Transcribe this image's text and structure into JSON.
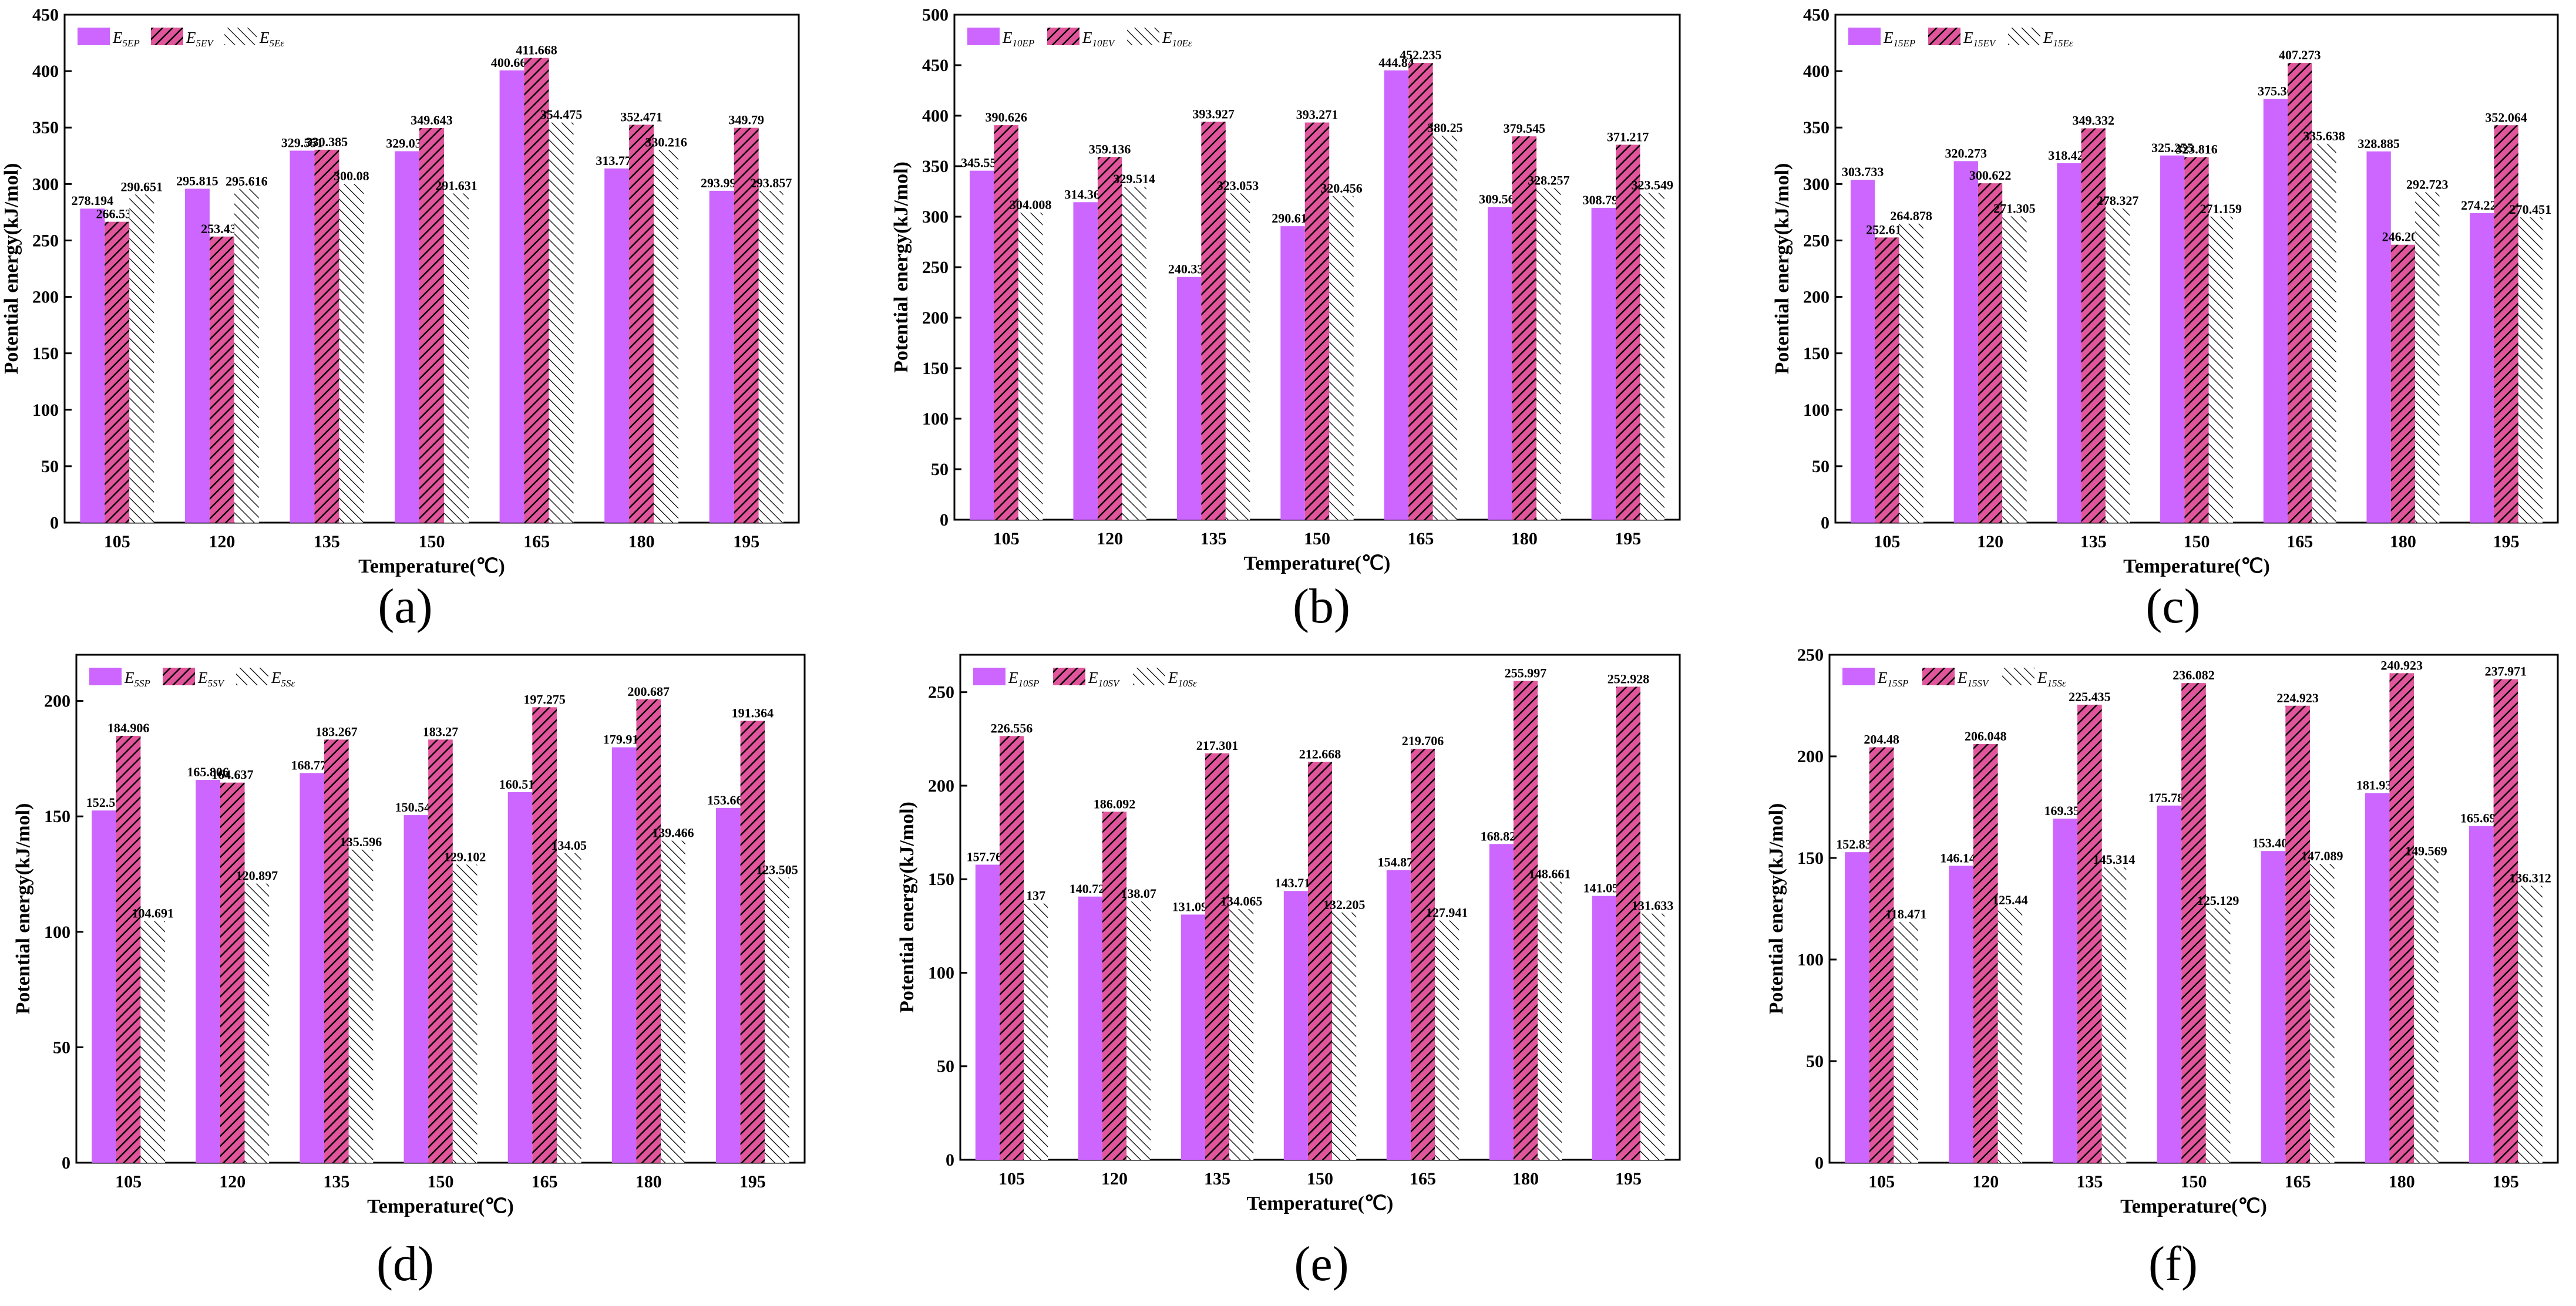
{
  "colors": {
    "solid": "#cc66ff",
    "hatch_bg": "#e0559b",
    "hatch_line": "#000000",
    "hatch2_bg": "#ffffff"
  },
  "chart_data": [
    {
      "type": "bar",
      "panel": "(a)",
      "categories": [
        "105",
        "120",
        "135",
        "150",
        "165",
        "180",
        "195"
      ],
      "ylim": [
        0,
        450
      ],
      "yticks": [
        0,
        50,
        100,
        150,
        200,
        250,
        300,
        350,
        400,
        450
      ],
      "xlabel": "Temperature(℃)",
      "ylabel": "Potential energy(kJ/mol)",
      "series": [
        {
          "name": "E5EP",
          "legend_main": "E",
          "legend_sub": "5EP",
          "values": [
            278.194,
            295.815,
            329.551,
            329.039,
            400.663,
            313.775,
            293.998
          ],
          "labels": [
            "278.194",
            "295.815",
            "329.551",
            "329.039",
            "400.663",
            "313.775",
            "293.998"
          ]
        },
        {
          "name": "E5EV",
          "legend_main": "E",
          "legend_sub": "5EV",
          "values": [
            266.539,
            253.433,
            330.385,
            349.643,
            411.668,
            352.471,
            349.79
          ],
          "labels": [
            "266.539",
            "253.433",
            "330.385",
            "349.643",
            "411.668",
            "352.471",
            "349.79"
          ]
        },
        {
          "name": "E5Eε",
          "legend_main": "E",
          "legend_sub": "5Eε",
          "values": [
            290.651,
            295.616,
            300.08,
            291.631,
            354.475,
            330.216,
            293.857
          ],
          "labels": [
            "290.651",
            "295.616",
            "300.08",
            "291.631",
            "354.475",
            "330.216",
            "293.857"
          ]
        }
      ]
    },
    {
      "type": "bar",
      "panel": "(b)",
      "categories": [
        "105",
        "120",
        "135",
        "150",
        "165",
        "180",
        "195"
      ],
      "ylim": [
        0,
        500
      ],
      "yticks": [
        0,
        50,
        100,
        150,
        200,
        250,
        300,
        350,
        400,
        450,
        500
      ],
      "xlabel": "Temperature(℃)",
      "ylabel": "Potential energy(kJ/mol)",
      "series": [
        {
          "name": "E10EP",
          "legend_main": "E",
          "legend_sub": "10EP",
          "values": [
            345.552,
            314.369,
            240.338,
            290.615,
            444.84,
            309.567,
            308.792
          ],
          "labels": [
            "345.552",
            "314.369",
            "240.338",
            "290.615",
            "444.84",
            "309.567",
            "308.792"
          ]
        },
        {
          "name": "E10EV",
          "legend_main": "E",
          "legend_sub": "10EV",
          "values": [
            390.626,
            359.136,
            393.927,
            393.271,
            452.235,
            379.545,
            371.217
          ],
          "labels": [
            "390.626",
            "359.136",
            "393.927",
            "393.271",
            "452.235",
            "379.545",
            "371.217"
          ]
        },
        {
          "name": "E10Eε",
          "legend_main": "E",
          "legend_sub": "10Eε",
          "values": [
            304.008,
            329.514,
            323.053,
            320.456,
            380.25,
            328.257,
            323.549
          ],
          "labels": [
            "304.008",
            "329.514",
            "323.053",
            "320.456",
            "380.25",
            "328.257",
            "323.549"
          ]
        }
      ]
    },
    {
      "type": "bar",
      "panel": "(c)",
      "categories": [
        "105",
        "120",
        "135",
        "150",
        "165",
        "180",
        "195"
      ],
      "ylim": [
        0,
        450
      ],
      "yticks": [
        0,
        50,
        100,
        150,
        200,
        250,
        300,
        350,
        400,
        450
      ],
      "xlabel": "Temperature(℃)",
      "ylabel": "Potential energy(kJ/mol)",
      "series": [
        {
          "name": "E15EP",
          "legend_main": "E",
          "legend_sub": "15EP",
          "values": [
            303.733,
            320.273,
            318.426,
            325.255,
            375.36,
            328.885,
            274.224
          ],
          "labels": [
            "303.733",
            "320.273",
            "318.426",
            "325.255",
            "375.36",
            "328.885",
            "274.224"
          ]
        },
        {
          "name": "E15EV",
          "legend_main": "E",
          "legend_sub": "15EV",
          "values": [
            252.618,
            300.622,
            349.332,
            323.816,
            407.273,
            246.203,
            352.064
          ],
          "labels": [
            "252.618",
            "300.622",
            "349.332",
            "323.816",
            "407.273",
            "246.203",
            "352.064"
          ]
        },
        {
          "name": "E15Eε",
          "legend_main": "E",
          "legend_sub": "15Eε",
          "values": [
            264.878,
            271.305,
            278.327,
            271.159,
            335.638,
            292.723,
            270.451
          ],
          "labels": [
            "264.878",
            "271.305",
            "278.327",
            "271.159",
            "335.638",
            "292.723",
            "270.451"
          ]
        }
      ]
    },
    {
      "type": "bar",
      "panel": "(d)",
      "categories": [
        "105",
        "120",
        "135",
        "150",
        "165",
        "180",
        "195"
      ],
      "ylim": [
        0,
        220
      ],
      "yticks": [
        0,
        50,
        100,
        150,
        200
      ],
      "xlabel": "Temperature(℃)",
      "ylabel": "Potential energy(kJ/mol)",
      "series": [
        {
          "name": "E5SP",
          "legend_main": "E",
          "legend_sub": "5SP",
          "values": [
            152.55,
            165.806,
            168.779,
            150.541,
            160.514,
            179.918,
            153.666
          ],
          "labels": [
            "152.55",
            "165.806",
            "168.779",
            "150.541",
            "160.514",
            "179.918",
            "153.666"
          ]
        },
        {
          "name": "E5SV",
          "legend_main": "E",
          "legend_sub": "5SV",
          "values": [
            184.906,
            164.637,
            183.267,
            183.27,
            197.275,
            200.687,
            191.364
          ],
          "labels": [
            "184.906",
            "164.637",
            "183.267",
            "183.27",
            "197.275",
            "200.687",
            "191.364"
          ]
        },
        {
          "name": "E5Sε",
          "legend_main": "E",
          "legend_sub": "5Sε",
          "values": [
            104.691,
            120.897,
            135.596,
            129.102,
            134.05,
            139.466,
            123.505
          ],
          "labels": [
            "104.691",
            "120.897",
            "135.596",
            "129.102",
            "134.05",
            "139.466",
            "123.505"
          ]
        }
      ]
    },
    {
      "type": "bar",
      "panel": "(e)",
      "categories": [
        "105",
        "120",
        "135",
        "150",
        "165",
        "180",
        "195"
      ],
      "ylim": [
        0,
        270
      ],
      "yticks": [
        0,
        50,
        100,
        150,
        200,
        250
      ],
      "xlabel": "Temperature(℃)",
      "ylabel": "Potential energy(kJ/mol)",
      "series": [
        {
          "name": "E10SP",
          "legend_main": "E",
          "legend_sub": "10SP",
          "values": [
            157.768,
            140.728,
            131.096,
            143.718,
            154.873,
            168.826,
            141.058
          ],
          "labels": [
            "157.768",
            "140.728",
            "131.096",
            "143.718",
            "154.873",
            "168.826",
            "141.058"
          ]
        },
        {
          "name": "E10SV",
          "legend_main": "E",
          "legend_sub": "10SV",
          "values": [
            226.556,
            186.092,
            217.301,
            212.668,
            219.706,
            255.997,
            252.928
          ],
          "labels": [
            "226.556",
            "186.092",
            "217.301",
            "212.668",
            "219.706",
            "255.997",
            "252.928"
          ]
        },
        {
          "name": "E10Sε",
          "legend_main": "E",
          "legend_sub": "10Sε",
          "values": [
            137,
            138.07,
            134.065,
            132.205,
            127.941,
            148.661,
            131.633
          ],
          "labels": [
            "137",
            "138.07",
            "134.065",
            "132.205",
            "127.941",
            "148.661",
            "131.633"
          ]
        }
      ]
    },
    {
      "type": "bar",
      "panel": "(f)",
      "categories": [
        "105",
        "120",
        "135",
        "150",
        "165",
        "180",
        "195"
      ],
      "ylim": [
        0,
        250
      ],
      "yticks": [
        0,
        50,
        100,
        150,
        200,
        250
      ],
      "xlabel": "Temperature(℃)",
      "ylabel": "Potential energy(kJ/mol)",
      "series": [
        {
          "name": "E15SP",
          "legend_main": "E",
          "legend_sub": "15SP",
          "values": [
            152.838,
            146.142,
            169.355,
            175.783,
            153.408,
            181.939,
            165.696
          ],
          "labels": [
            "152.838",
            "146.142",
            "169.355",
            "175.783",
            "153.408",
            "181.939",
            "165.696"
          ]
        },
        {
          "name": "E15SV",
          "legend_main": "E",
          "legend_sub": "15SV",
          "values": [
            204.48,
            206.048,
            225.435,
            236.082,
            224.923,
            240.923,
            237.971
          ],
          "labels": [
            "204.48",
            "206.048",
            "225.435",
            "236.082",
            "224.923",
            "240.923",
            "237.971"
          ]
        },
        {
          "name": "E15Sε",
          "legend_main": "E",
          "legend_sub": "15Sε",
          "values": [
            118.471,
            125.44,
            145.314,
            125.129,
            147.089,
            149.569,
            136.312
          ],
          "labels": [
            "118.471",
            "125.44",
            "145.314",
            "125.129",
            "147.089",
            "149.569",
            "136.312"
          ]
        }
      ]
    }
  ]
}
